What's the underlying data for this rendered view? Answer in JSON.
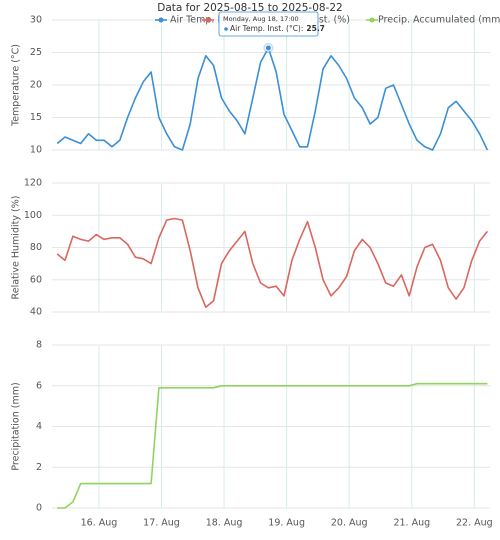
{
  "chart_data": {
    "type": "line",
    "title": "Data for 2025-08-15 to 2025-08-22",
    "x": [
      "2025-08-15 08:00",
      "2025-08-15 11:00",
      "2025-08-15 14:00",
      "2025-08-15 17:00",
      "2025-08-15 20:00",
      "2025-08-15 23:00",
      "2025-08-16 02:00",
      "2025-08-16 05:00",
      "2025-08-16 08:00",
      "2025-08-16 11:00",
      "2025-08-16 14:00",
      "2025-08-16 17:00",
      "2025-08-16 20:00",
      "2025-08-16 23:00",
      "2025-08-17 02:00",
      "2025-08-17 05:00",
      "2025-08-17 08:00",
      "2025-08-17 11:00",
      "2025-08-17 14:00",
      "2025-08-17 17:00",
      "2025-08-17 20:00",
      "2025-08-17 23:00",
      "2025-08-18 02:00",
      "2025-08-18 05:00",
      "2025-08-18 08:00",
      "2025-08-18 11:00",
      "2025-08-18 14:00",
      "2025-08-18 17:00",
      "2025-08-18 20:00",
      "2025-08-18 23:00",
      "2025-08-19 02:00",
      "2025-08-19 05:00",
      "2025-08-19 08:00",
      "2025-08-19 11:00",
      "2025-08-19 14:00",
      "2025-08-19 17:00",
      "2025-08-19 20:00",
      "2025-08-19 23:00",
      "2025-08-20 02:00",
      "2025-08-20 05:00",
      "2025-08-20 08:00",
      "2025-08-20 11:00",
      "2025-08-20 14:00",
      "2025-08-20 17:00",
      "2025-08-20 20:00",
      "2025-08-20 23:00",
      "2025-08-21 02:00",
      "2025-08-21 05:00",
      "2025-08-21 08:00",
      "2025-08-21 11:00",
      "2025-08-21 14:00",
      "2025-08-21 17:00",
      "2025-08-21 20:00",
      "2025-08-21 23:00",
      "2025-08-22 02:00",
      "2025-08-22 05:00"
    ],
    "xlim": [
      "2025-08-15 06:00",
      "2025-08-22 06:00"
    ],
    "xticks": [
      {
        "value": "2025-08-16 00:00",
        "label": "16. Aug"
      },
      {
        "value": "2025-08-17 00:00",
        "label": "17. Aug"
      },
      {
        "value": "2025-08-18 00:00",
        "label": "18. Aug"
      },
      {
        "value": "2025-08-19 00:00",
        "label": "19. Aug"
      },
      {
        "value": "2025-08-20 00:00",
        "label": "20. Aug"
      },
      {
        "value": "2025-08-21 00:00",
        "label": "21. Aug"
      },
      {
        "value": "2025-08-22 00:00",
        "label": "22. Aug"
      }
    ],
    "grid": true,
    "legend": "top",
    "panels": [
      {
        "ylabel": "Temperature (°C)",
        "ylim": [
          10,
          30
        ],
        "yticks": [
          10,
          15,
          20,
          25,
          30
        ],
        "series": [
          {
            "name": "Air Temp. Inst. (°C)",
            "color": "#3a8fd6",
            "values": [
              11,
              12,
              11.5,
              11,
              12.5,
              11.5,
              11.5,
              10.5,
              11.5,
              15,
              18,
              20.5,
              22,
              15,
              12.5,
              10.5,
              10,
              14,
              21,
              24.5,
              23,
              18,
              16,
              14.5,
              12.5,
              18,
              23.5,
              25.7,
              22,
              15.5,
              13,
              10.5,
              10.5,
              16,
              22.5,
              24.5,
              23,
              21,
              18,
              16.5,
              14,
              15,
              19.5,
              20,
              17,
              14,
              11.5,
              10.5,
              10,
              12.5,
              16.5,
              17.5,
              16,
              14.5,
              12.5,
              10
            ]
          }
        ]
      },
      {
        "ylabel": "Relative Humidity (%)",
        "ylim": [
          40,
          120
        ],
        "yticks": [
          40,
          60,
          80,
          100,
          120
        ],
        "series": [
          {
            "name": "Relative Humidity Inst. (%)",
            "color": "#d9675e",
            "values": [
              76,
              72,
              87,
              85,
              84,
              88,
              85,
              86,
              86,
              82,
              74,
              73,
              70,
              86,
              97,
              98,
              97,
              78,
              55,
              43,
              47,
              70,
              78,
              84,
              90,
              70,
              58,
              55,
              56,
              50,
              72,
              85,
              96,
              80,
              60,
              50,
              55,
              62,
              78,
              85,
              80,
              70,
              58,
              56,
              63,
              50,
              68,
              80,
              82,
              72,
              55,
              48,
              55,
              72,
              84,
              90
            ]
          }
        ]
      },
      {
        "ylabel": "Precipitation (mm)",
        "ylim": [
          0,
          8
        ],
        "yticks": [
          0,
          2,
          4,
          6,
          8
        ],
        "series": [
          {
            "name": "Precip. Accumulated (mm)",
            "color": "#8fd460",
            "values": [
              0,
              0,
              0.3,
              1.2,
              1.2,
              1.2,
              1.2,
              1.2,
              1.2,
              1.2,
              1.2,
              1.2,
              1.2,
              5.9,
              5.9,
              5.9,
              5.9,
              5.9,
              5.9,
              5.9,
              5.9,
              6,
              6,
              6,
              6,
              6,
              6,
              6,
              6,
              6,
              6,
              6,
              6,
              6,
              6,
              6,
              6,
              6,
              6,
              6,
              6,
              6,
              6,
              6,
              6,
              6,
              6.1,
              6.1,
              6.1,
              6.1,
              6.1,
              6.1,
              6.1,
              6.1,
              6.1,
              6.1
            ]
          }
        ]
      }
    ],
    "tooltip": {
      "x": "2025-08-18 17:00",
      "date": "Monday, Aug 18, 17:00",
      "label": "Air Temp. Inst. (°C):",
      "value": 25.7
    }
  }
}
